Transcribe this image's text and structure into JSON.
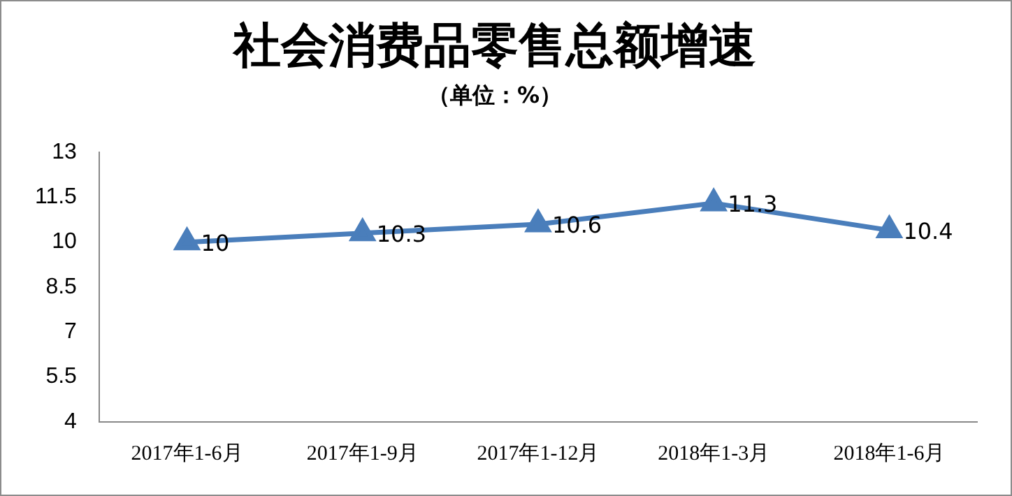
{
  "chart_data": {
    "type": "line",
    "title": "社会消费品零售总额增速",
    "subtitle": "（单位：%）",
    "categories": [
      "2017年1-6月",
      "2017年1-9月",
      "2017年1-12月",
      "2018年1-3月",
      "2018年1-6月"
    ],
    "series": [
      {
        "color": "#4a7ebb",
        "values": [
          10,
          10.3,
          10.6,
          11.3,
          10.4
        ]
      }
    ],
    "ylim": [
      4,
      13
    ],
    "yticks": [
      4,
      5.5,
      7,
      8.5,
      10,
      11.5,
      13
    ],
    "grid": false,
    "legend": false,
    "marker": "triangle",
    "line_style": "solid",
    "data_labels": true
  }
}
